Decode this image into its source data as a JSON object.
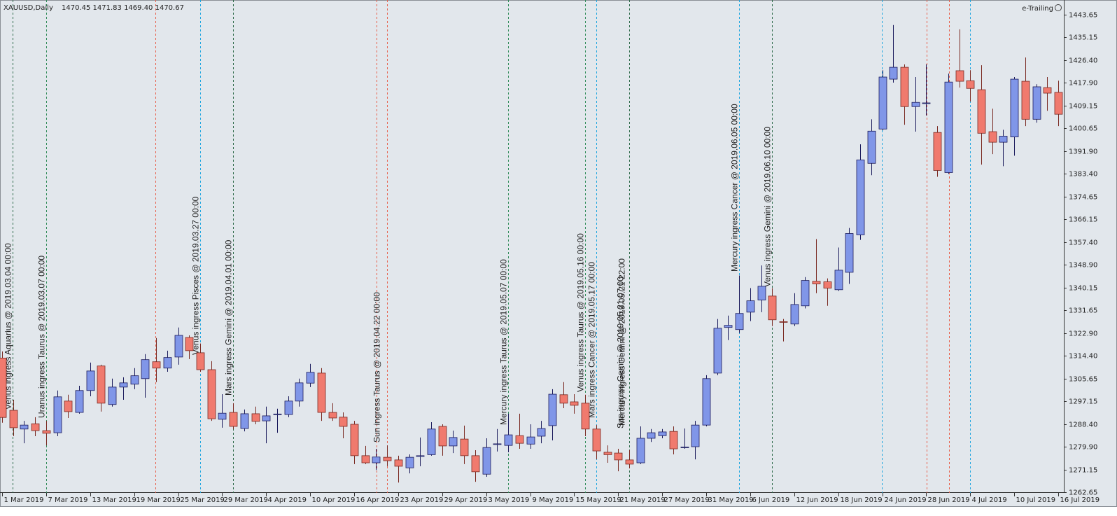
{
  "chart_data": {
    "type": "candlestick",
    "title": "XAUUSD,Daily",
    "quote": "1470.45 1471.83 1469.40 1470.67",
    "indicator": "e-Trailing",
    "x": [
      "1 Mar 2019",
      null,
      null,
      null,
      "7 Mar 2019",
      null,
      null,
      null,
      "13 Mar 2019",
      null,
      null,
      null,
      "19 Mar 2019",
      null,
      null,
      null,
      "25 Mar 2019",
      null,
      null,
      null,
      "29 Mar 2019",
      null,
      null,
      null,
      "4 Apr 2019",
      null,
      null,
      null,
      "10 Apr 2019",
      null,
      null,
      null,
      "16 Apr 2019",
      null,
      null,
      null,
      "23 Apr 2019",
      null,
      null,
      null,
      "29 Apr 2019",
      null,
      null,
      null,
      "3 May 2019",
      null,
      null,
      null,
      "9 May 2019",
      null,
      null,
      null,
      "15 May 2019",
      null,
      null,
      null,
      "21 May 2019",
      null,
      null,
      null,
      "27 May 2019",
      null,
      null,
      null,
      "31 May 2019",
      null,
      null,
      null,
      "6 Jun 2019",
      null,
      null,
      null,
      "12 Jun 2019",
      null,
      null,
      null,
      "18 Jun 2019",
      null,
      null,
      null,
      "24 Jun 2019",
      null,
      null,
      null,
      "28 Jun 2019",
      null,
      null,
      null,
      "4 Jul 2019",
      null,
      null,
      null,
      "10 Jul 2019",
      null,
      null,
      null,
      "16 Jul 2019"
    ],
    "open": [
      1313.5,
      1293.7,
      1286.6,
      1288.6,
      1286.0,
      1285.2,
      1297.2,
      1292.9,
      1301.2,
      1310.5,
      1295.9,
      1302.5,
      1303.6,
      1305.7,
      1312.1,
      1309.7,
      1313.9,
      1321.3,
      1315.5,
      1309.1,
      1290.3,
      1292.9,
      1286.8,
      1292.4,
      1289.7,
      1292.1,
      1292.1,
      1297.2,
      1304.0,
      1307.8,
      1292.9,
      1291.1,
      1288.4,
      1276.5,
      1273.8,
      1275.9,
      1274.9,
      1271.9,
      1276.2,
      1276.9,
      1287.6,
      1280.2,
      1282.8,
      1276.5,
      1269.5,
      1280.9,
      1280.4,
      1284.1,
      1280.9,
      1283.9,
      1287.9,
      1299.6,
      1296.9,
      1296.4,
      1286.6,
      1277.8,
      1277.5,
      1274.9,
      1273.8,
      1283.1,
      1284.1,
      1285.7,
      1279.6,
      1279.9,
      1288.1,
      1307.8,
      1325.1,
      1324.3,
      1330.9,
      1335.5,
      1337.0,
      1327.3,
      1326.4,
      1333.3,
      1342.6,
      1342.4,
      1339.4,
      1346.0,
      1360.2,
      1387.3,
      1400.3,
      1419.2,
      1423.7,
      1408.8,
      1410.1,
      1399.0,
      1383.8,
      1422.4,
      1418.6,
      1415.2,
      1399.3,
      1395.3,
      1397.3,
      1418.4,
      1404.0,
      1416.0,
      1414.2
    ],
    "high": [
      1316.0,
      1297.7,
      1289.7,
      1291.1,
      1289.7,
      1301.2,
      1299.6,
      1303.0,
      1311.8,
      1311.0,
      1305.7,
      1306.2,
      1309.7,
      1315.0,
      1321.1,
      1316.3,
      1325.1,
      1322.1,
      1319.0,
      1312.3,
      1299.8,
      1296.4,
      1294.0,
      1295.1,
      1295.1,
      1294.3,
      1299.0,
      1305.7,
      1311.3,
      1309.7,
      1296.4,
      1292.9,
      1289.7,
      1280.2,
      1279.1,
      1280.4,
      1276.5,
      1277.0,
      1283.4,
      1289.2,
      1288.4,
      1286.0,
      1287.9,
      1278.6,
      1283.1,
      1286.6,
      1292.4,
      1292.4,
      1288.4,
      1289.7,
      1301.7,
      1304.4,
      1299.8,
      1299.6,
      1288.1,
      1280.4,
      1279.1,
      1278.6,
      1287.6,
      1286.6,
      1286.6,
      1287.6,
      1286.8,
      1289.7,
      1307.0,
      1328.3,
      1329.6,
      1344.8,
      1340.0,
      1348.6,
      1340.0,
      1328.3,
      1338.1,
      1344.2,
      1358.6,
      1343.7,
      1355.4,
      1362.8,
      1394.5,
      1404.0,
      1422.6,
      1439.7,
      1424.8,
      1420.0,
      1424.8,
      1401.4,
      1421.3,
      1438.1,
      1422.6,
      1424.5,
      1408.0,
      1400.0,
      1420.0,
      1427.4,
      1417.3,
      1420.0,
      1418.6
    ],
    "low": [
      1289.0,
      1283.9,
      1281.2,
      1283.9,
      1280.4,
      1283.9,
      1290.8,
      1292.4,
      1299.0,
      1293.2,
      1295.1,
      1297.7,
      1301.7,
      1298.5,
      1304.4,
      1308.3,
      1311.0,
      1313.1,
      1308.3,
      1289.7,
      1287.1,
      1286.6,
      1285.7,
      1288.4,
      1281.2,
      1285.2,
      1291.1,
      1295.1,
      1302.5,
      1289.7,
      1289.7,
      1283.1,
      1273.3,
      1273.3,
      1271.1,
      1272.5,
      1266.3,
      1269.8,
      1272.5,
      1276.5,
      1276.5,
      1277.5,
      1273.3,
      1266.6,
      1268.5,
      1278.1,
      1277.8,
      1279.1,
      1279.1,
      1281.2,
      1282.3,
      1294.5,
      1292.4,
      1283.9,
      1275.1,
      1273.8,
      1270.6,
      1271.7,
      1273.3,
      1281.7,
      1283.1,
      1277.0,
      1279.1,
      1275.1,
      1287.6,
      1307.0,
      1320.3,
      1323.0,
      1327.5,
      1330.9,
      1325.6,
      1319.8,
      1325.6,
      1332.3,
      1338.1,
      1333.3,
      1338.9,
      1341.6,
      1358.3,
      1382.8,
      1399.8,
      1417.9,
      1401.9,
      1399.3,
      1405.4,
      1382.2,
      1383.3,
      1416.0,
      1410.7,
      1386.8,
      1390.8,
      1386.2,
      1390.2,
      1401.4,
      1402.7,
      1407.2,
      1401.4
    ],
    "close": [
      1291.0,
      1287.1,
      1288.1,
      1286.0,
      1285.0,
      1298.8,
      1293.2,
      1301.2,
      1308.6,
      1296.4,
      1302.5,
      1304.1,
      1306.8,
      1312.9,
      1309.7,
      1313.7,
      1322.1,
      1316.3,
      1309.1,
      1290.5,
      1292.6,
      1287.6,
      1292.4,
      1289.5,
      1291.6,
      1292.3,
      1297.2,
      1304.1,
      1308.1,
      1292.9,
      1290.8,
      1287.6,
      1276.5,
      1273.8,
      1276.0,
      1274.6,
      1272.5,
      1275.9,
      1276.5,
      1286.6,
      1280.2,
      1283.4,
      1276.5,
      1270.4,
      1279.6,
      1281.0,
      1284.4,
      1281.2,
      1283.6,
      1286.8,
      1299.8,
      1296.4,
      1295.6,
      1286.6,
      1278.3,
      1276.9,
      1274.9,
      1273.3,
      1283.1,
      1285.2,
      1285.5,
      1279.1,
      1279.8,
      1288.1,
      1305.7,
      1324.8,
      1325.9,
      1330.4,
      1335.2,
      1340.7,
      1328.0,
      1327.2,
      1333.8,
      1342.9,
      1341.6,
      1340.0,
      1346.8,
      1360.7,
      1388.6,
      1399.5,
      1420.0,
      1423.7,
      1408.8,
      1410.4,
      1410.2,
      1384.6,
      1418.1,
      1418.4,
      1415.7,
      1398.7,
      1395.3,
      1397.6,
      1419.2,
      1404.0,
      1416.3,
      1413.9,
      1405.9
    ],
    "up_color": "#8096e8",
    "down_color": "#f07a6e",
    "up_edge": "#1b1b5c",
    "down_edge": "#7a2a22",
    "ylim": [
      1262.4,
      1448.4
    ],
    "yticks": [
      1443.65,
      1435.15,
      {
        "value": 1426.4,
        "label": "1426.40"
      },
      {
        "value": 1417.9,
        "label": "1417.90"
      },
      1409.15,
      1400.65,
      {
        "value": 1391.9,
        "label": "1391.90"
      },
      {
        "value": 1383.4,
        "label": "1383.40"
      },
      1374.65,
      1366.15,
      {
        "value": 1357.4,
        "label": "1357.40"
      },
      {
        "value": 1348.9,
        "label": "1348.90"
      },
      1340.15,
      1331.65,
      {
        "value": 1322.9,
        "label": "1322.90"
      },
      {
        "value": 1314.4,
        "label": "1314.40"
      },
      1305.65,
      1297.15,
      {
        "value": 1288.4,
        "label": "1288.40"
      },
      {
        "value": 1279.9,
        "label": "1279.90"
      },
      1271.15,
      1262.65
    ],
    "annotations": [
      {
        "text": "Venus ingress Aquarius @ 2019.03.04 00:00",
        "color": "#5c5c5c",
        "line_color": "#2e6b4a"
      },
      {
        "text": "Uranus ingress Taurus @ 2019.03.07 00:00",
        "color": "#2e8b57",
        "line_color": "#2e8b57"
      },
      {
        "line_color": "#e8604c"
      },
      {
        "text": "Venus ingress Pisces @ 2019.03.27 00:00",
        "color": "#1ea6e0",
        "line_color": "#1ea6e0"
      },
      {
        "text": "Mars ingress Gemini @ 2019.04.01 00:00",
        "color": "#5c5c5c",
        "line_color": "#2e6b4a"
      },
      {
        "line_color": "#e8604c"
      },
      {
        "text": "Sun ingress Taurus @ 2019.04.22 00:00",
        "color": "#2e8b57",
        "line_color": "#e8604c"
      },
      {
        "text": "Mercury ingress Taurus @ 2019.05.07 00:00",
        "color": "#2e8b57",
        "line_color": "#2e8b57"
      },
      {
        "text": "Venus ingress Taurus @ 2019.05.16 00:00",
        "color": "#2e8b57",
        "line_color": "#2e8b57"
      },
      {
        "text": "Mars ingress Cancer @ 2019.05.17 00:00",
        "color": "#1ea6e0",
        "line_color": "#1ea6e0"
      },
      {
        "text": "Sun ingress Gemini @ 2019.05.21 07:00",
        "color": "#5c5c5c",
        "line_color": "#2e6b4a"
      },
      {
        "text": "Mercury ingress Gemini @ 2019.05.21 22:00",
        "color": "#5c5c5c",
        "line_color": "#2e6b4a"
      },
      {
        "text": "Mercury ingress Cancer @ 2019.06.05 00:00",
        "color": "#1ea6e0",
        "line_color": "#1ea6e0"
      },
      {
        "text": "Venus ingress Gemini @ 2019.06.10 00:00",
        "color": "#5c5c5c",
        "line_color": "#2e6b4a"
      },
      {
        "line_color": "#1ea6e0"
      },
      {
        "line_color": "#e8604c"
      },
      {
        "line_color": "#e8604c"
      },
      {
        "line_color": "#1ea6e0"
      }
    ]
  }
}
